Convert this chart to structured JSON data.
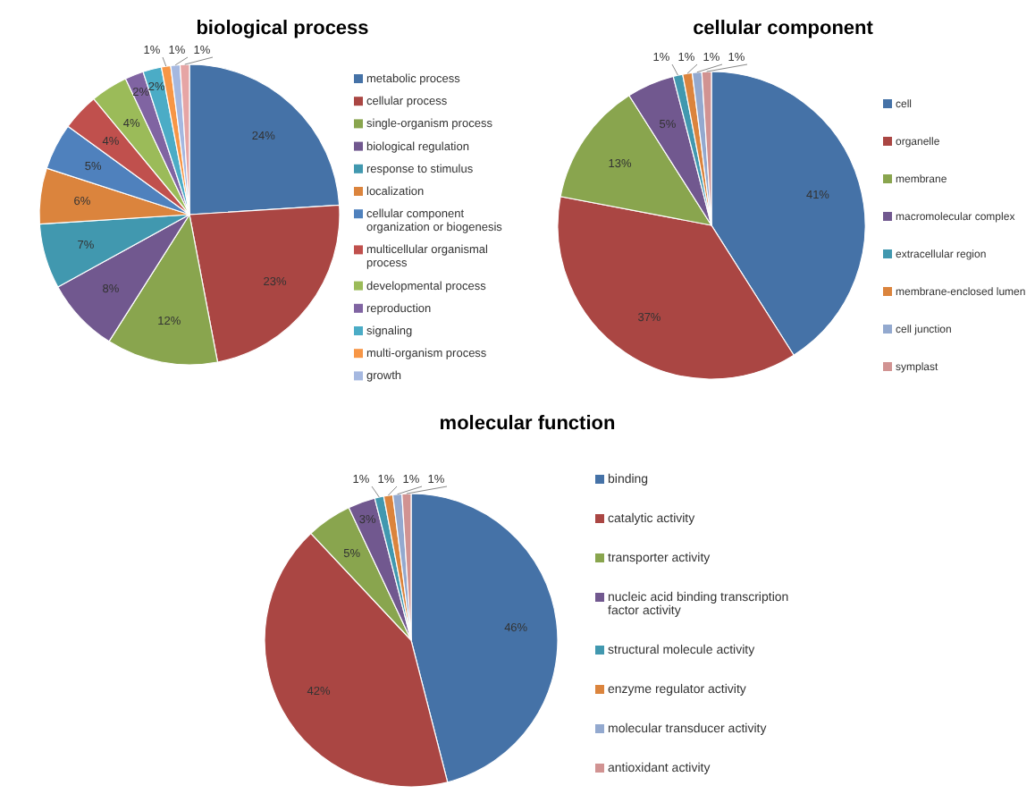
{
  "chart_data": [
    {
      "type": "pie",
      "title": "biological process",
      "legend": "right",
      "categories": [
        "metabolic process",
        "cellular process",
        "single-organism process",
        "biological regulation",
        "response to stimulus",
        "localization",
        "cellular component organization or biogenesis",
        "multicellular organismal process",
        "developmental process",
        "reproduction",
        "signaling",
        "multi-organism process",
        "growth",
        null
      ],
      "values": [
        24,
        23,
        12,
        8,
        7,
        6,
        5,
        4,
        4,
        2,
        2,
        1,
        1,
        1
      ],
      "value_labels": [
        "24%",
        "23%",
        "12%",
        "8%",
        "7%",
        "6%",
        "5%",
        "4%",
        "4%",
        "2%",
        "2%",
        "1%",
        "1%",
        "1%"
      ],
      "colors": [
        "#4572a7",
        "#aa4643",
        "#89a54e",
        "#71588f",
        "#4198af",
        "#db843d",
        "#4f81bd",
        "#c0504d",
        "#9bbb59",
        "#8064a2",
        "#4bacc6",
        "#f79646",
        "#a5b8e0",
        "#e6a5a5"
      ]
    },
    {
      "type": "pie",
      "title": "cellular component",
      "legend": "right",
      "categories": [
        "cell",
        "organelle",
        "membrane",
        "macromolecular complex",
        "extracellular region",
        "membrane-enclosed lumen",
        "cell junction",
        "symplast"
      ],
      "values": [
        41,
        37,
        13,
        5,
        1,
        1,
        1,
        1
      ],
      "value_labels": [
        "41%",
        "37%",
        "13%",
        "5%",
        "1%",
        "1%",
        "1%",
        "1%"
      ],
      "colors": [
        "#4572a7",
        "#aa4643",
        "#89a54e",
        "#71588f",
        "#4198af",
        "#db843d",
        "#93a9cf",
        "#d19392"
      ]
    },
    {
      "type": "pie",
      "title": "molecular function",
      "legend": "right",
      "categories": [
        "binding",
        "catalytic activity",
        "transporter activity",
        "nucleic acid binding transcription factor activity",
        "structural molecule activity",
        "enzyme regulator activity",
        "molecular transducer activity",
        "antioxidant activity"
      ],
      "values": [
        46,
        42,
        5,
        3,
        1,
        1,
        1,
        1
      ],
      "value_labels": [
        "46%",
        "42%",
        "5%",
        "3%",
        "1%",
        "1%",
        "1%",
        "1%"
      ],
      "colors": [
        "#4572a7",
        "#aa4643",
        "#89a54e",
        "#71588f",
        "#4198af",
        "#db843d",
        "#93a9cf",
        "#d19392"
      ]
    }
  ]
}
